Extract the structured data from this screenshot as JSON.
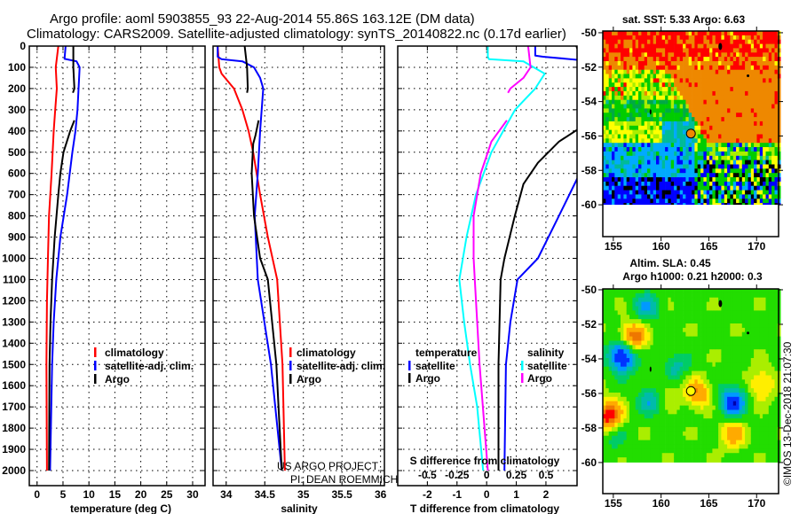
{
  "header": {
    "title_line1": "Argo profile: aoml 5903855_93 22-Aug-2014 55.86S 163.12E (DM data)",
    "title_line2": "Climatology: CARS2009. Satellite-adjusted climatology: synTS_20140822.nc (0.17d earlier)"
  },
  "credits": {
    "project": "US ARGO PROJECT",
    "pi": "PI: DEAN ROEMMICH",
    "watermark": "©IMOS 13-Dec-2018 21:07:30"
  },
  "colors": {
    "climatology": "#ff0000",
    "satellite": "#0000ff",
    "argo": "#000000",
    "s_satellite": "#00ffff",
    "s_argo": "#ff00ff"
  },
  "chart_data": [
    {
      "type": "line",
      "id": "temperature",
      "xlabel": "temperature (deg C)",
      "ylabel": "",
      "xticks": [
        "0",
        "5",
        "10",
        "15",
        "20",
        "25",
        "30"
      ],
      "xtick_values": [
        0,
        5,
        10,
        15,
        20,
        25,
        30
      ],
      "xlim": [
        -1.5,
        32.4
      ],
      "ylim": [
        2070,
        0
      ],
      "yticks": [
        0,
        100,
        200,
        300,
        400,
        500,
        600,
        700,
        800,
        900,
        1000,
        1100,
        1200,
        1300,
        1400,
        1500,
        1600,
        1700,
        1800,
        1900,
        2000
      ],
      "grid": true,
      "legend": [
        "climatology",
        "satellite-adj. clim.",
        "Argo"
      ],
      "series": [
        {
          "name": "climatology",
          "color": "#ff0000",
          "segments": [
            [
              [
                0,
                4.1
              ],
              [
                100,
                3.6
              ],
              [
                200,
                3.8
              ],
              [
                300,
                3.5
              ],
              [
                400,
                3.2
              ],
              [
                600,
                2.8
              ],
              [
                800,
                2.3
              ],
              [
                1000,
                2.1
              ],
              [
                1200,
                1.9
              ],
              [
                1500,
                1.8
              ],
              [
                2000,
                1.9
              ]
            ]
          ]
        },
        {
          "name": "satellite-adj. clim.",
          "color": "#0000ff",
          "segments": [
            [
              [
                0,
                5.5
              ],
              [
                60,
                5.3
              ],
              [
                72,
                7.6
              ],
              [
                100,
                8.2
              ],
              [
                300,
                7.8
              ],
              [
                400,
                7.4
              ],
              [
                500,
                6.8
              ],
              [
                700,
                5.8
              ],
              [
                900,
                4.5
              ],
              [
                1100,
                3.7
              ],
              [
                1300,
                3.2
              ],
              [
                1500,
                2.9
              ],
              [
                2000,
                2.5
              ]
            ]
          ]
        },
        {
          "name": "Argo",
          "color": "#000000",
          "segments": [
            [
              [
                0,
                7.0
              ],
              [
                100,
                7.0
              ],
              [
                200,
                7.2
              ],
              [
                220,
                6.9
              ]
            ],
            [
              [
                350,
                7.2
              ],
              [
                400,
                6.4
              ],
              [
                500,
                5.1
              ],
              [
                600,
                4.5
              ],
              [
                700,
                4.1
              ],
              [
                900,
                3.4
              ],
              [
                1100,
                2.9
              ],
              [
                1300,
                2.6
              ],
              [
                1500,
                2.4
              ],
              [
                2000,
                2.3
              ]
            ]
          ]
        }
      ]
    },
    {
      "type": "line",
      "id": "salinity",
      "xlabel": "salinity",
      "xticks": [
        "34",
        "34.5",
        "35",
        "35.5",
        "36"
      ],
      "xtick_values": [
        34,
        34.5,
        35,
        35.5,
        36
      ],
      "xlim": [
        33.83,
        36.05
      ],
      "ylim": [
        2070,
        0
      ],
      "grid": true,
      "legend": [
        "climatology",
        "satellite-adj. clim.",
        "Argo"
      ],
      "series": [
        {
          "name": "climatology",
          "color": "#ff0000",
          "segments": [
            [
              [
                0,
                33.89
              ],
              [
                100,
                33.91
              ],
              [
                130,
                33.94
              ],
              [
                200,
                34.1
              ],
              [
                300,
                34.21
              ],
              [
                400,
                34.29
              ],
              [
                500,
                34.35
              ],
              [
                700,
                34.44
              ],
              [
                900,
                34.54
              ],
              [
                1100,
                34.66
              ],
              [
                1500,
                34.73
              ],
              [
                2000,
                34.76
              ]
            ]
          ]
        },
        {
          "name": "satellite-adj. clim.",
          "color": "#0000ff",
          "segments": [
            [
              [
                0,
                33.89
              ],
              [
                50,
                33.89
              ],
              [
                62,
                33.94
              ],
              [
                72,
                34.21
              ],
              [
                100,
                34.36
              ],
              [
                150,
                34.44
              ],
              [
                200,
                34.48
              ],
              [
                400,
                34.44
              ],
              [
                600,
                34.41
              ],
              [
                800,
                34.37
              ],
              [
                1100,
                34.41
              ],
              [
                1500,
                34.58
              ],
              [
                2000,
                34.72
              ]
            ]
          ]
        },
        {
          "name": "Argo",
          "color": "#000000",
          "segments": [
            [
              [
                0,
                34.24
              ],
              [
                100,
                34.27
              ],
              [
                200,
                34.28
              ],
              [
                220,
                34.27
              ]
            ],
            [
              [
                350,
                34.42
              ],
              [
                420,
                34.38
              ],
              [
                460,
                34.35
              ],
              [
                600,
                34.33
              ],
              [
                800,
                34.36
              ],
              [
                1000,
                34.44
              ],
              [
                1100,
                34.54
              ],
              [
                1500,
                34.65
              ],
              [
                2000,
                34.72
              ]
            ]
          ]
        }
      ]
    },
    {
      "type": "line",
      "id": "differences",
      "xlabel": "T difference from climatology",
      "xlabel_s": "S difference from climatology",
      "xticks": [
        "-2",
        "-1",
        "0",
        "1",
        "2"
      ],
      "xtick_values": [
        -2,
        -1,
        0,
        1,
        2
      ],
      "xticks_s": [
        "-0.5",
        "-0.25",
        "0",
        "0.25",
        "0.5"
      ],
      "xtick_values_s": [
        -0.5,
        -0.25,
        0,
        0.25,
        0.5
      ],
      "xlim": [
        -3.0,
        3.05
      ],
      "ylim": [
        2070,
        0
      ],
      "grid": true,
      "legend_temperature": {
        "title": "temperature",
        "items": [
          "satellite",
          "Argo"
        ]
      },
      "legend_salinity": {
        "title": "salinity",
        "items": [
          "satellite",
          "Argo"
        ]
      },
      "series": [
        {
          "name": "T satellite",
          "axis": "T",
          "color": "#0000ff",
          "segments": [
            [
              [
                0,
                1.64
              ],
              [
                45,
                1.64
              ],
              [
                50,
                1.9
              ],
              [
                65,
                3.1
              ]
            ],
            [
              [
                620,
                3.07
              ],
              [
                800,
                2.44
              ],
              [
                1000,
                1.73
              ],
              [
                1100,
                1.04
              ],
              [
                1300,
                0.8
              ],
              [
                1500,
                0.65
              ],
              [
                2000,
                0.6
              ]
            ]
          ]
        },
        {
          "name": "T Argo",
          "axis": "T",
          "color": "#000000",
          "segments": [
            [
              [
                0,
                3.03
              ],
              [
                30,
                3.1
              ]
            ],
            [
              [
                390,
                3.1
              ],
              [
                450,
                2.44
              ],
              [
                550,
                1.73
              ],
              [
                650,
                1.24
              ],
              [
                800,
                0.95
              ],
              [
                1000,
                0.6
              ],
              [
                1100,
                0.47
              ],
              [
                1500,
                0.4
              ],
              [
                2000,
                0.4
              ]
            ]
          ]
        },
        {
          "name": "S satellite",
          "axis": "S",
          "color": "#00ffff",
          "segments": [
            [
              [
                0,
                0.01
              ],
              [
                50,
                0.01
              ],
              [
                62,
                0.02
              ],
              [
                72,
                0.31
              ],
              [
                130,
                0.49
              ],
              [
                200,
                0.41
              ],
              [
                300,
                0.24
              ],
              [
                500,
                0.04
              ],
              [
                700,
                -0.09
              ],
              [
                900,
                -0.17
              ],
              [
                1100,
                -0.23
              ],
              [
                1300,
                -0.19
              ],
              [
                1500,
                -0.14
              ],
              [
                1700,
                -0.08
              ],
              [
                2000,
                -0.03
              ]
            ]
          ]
        },
        {
          "name": "S Argo",
          "axis": "S",
          "color": "#ff00ff",
          "segments": [
            [
              [
                0,
                0.35
              ],
              [
                100,
                0.37
              ],
              [
                150,
                0.31
              ],
              [
                200,
                0.2
              ],
              [
                220,
                0.18
              ]
            ],
            [
              [
                350,
                0.17
              ],
              [
                450,
                0.04
              ],
              [
                600,
                -0.05
              ],
              [
                800,
                -0.11
              ],
              [
                1000,
                -0.11
              ],
              [
                1100,
                -0.1
              ],
              [
                1500,
                -0.06
              ],
              [
                2000,
                0.01
              ]
            ]
          ]
        }
      ]
    },
    {
      "type": "heatmap",
      "id": "sst_map",
      "title": "sat. SST: 5.33 Argo: 6.63",
      "lon_ticks": [
        "155",
        "160",
        "165",
        "170"
      ],
      "lon_values": [
        155,
        160,
        165,
        170
      ],
      "lat_ticks": [
        "-50",
        "-52",
        "-54",
        "-56",
        "-58",
        "-60"
      ],
      "lat_values": [
        -50,
        -52,
        -54,
        -56,
        -58,
        -60
      ],
      "lon_range": [
        153.9,
        172.3
      ],
      "lat_range": [
        -61.85,
        -49.9
      ],
      "profile_location": {
        "lon": 163.12,
        "lat": -55.86
      }
    },
    {
      "type": "heatmap",
      "id": "sla_map",
      "title": "Altim. SLA: 0.45",
      "subtitle": "Argo h1000: 0.21 h2000: 0.3",
      "lon_ticks": [
        "155",
        "160",
        "165",
        "170"
      ],
      "lon_values": [
        155,
        160,
        165,
        170
      ],
      "lat_ticks": [
        "-50",
        "-52",
        "-54",
        "-56",
        "-58",
        "-60"
      ],
      "lat_values": [
        -50,
        -52,
        -54,
        -56,
        -58,
        -60
      ],
      "lon_range": [
        153.9,
        172.3
      ],
      "lat_range": [
        -61.8,
        -49.95
      ],
      "profile_location": {
        "lon": 163.12,
        "lat": -55.86
      }
    }
  ]
}
